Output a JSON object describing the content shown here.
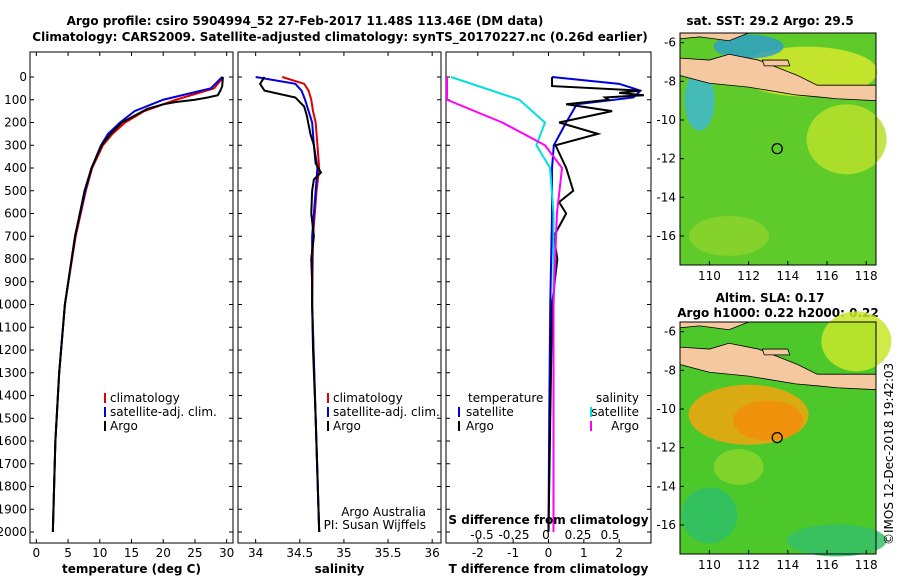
{
  "header": {
    "line1": "Argo profile: csiro 5904994_52 27-Feb-2017 11.48S 113.46E (DM data)",
    "line2": "Climatology: CARS2009. Satellite-adjusted climatology: synTS_20170227.nc (0.26d earlier)"
  },
  "colors": {
    "climatology": "#e00000",
    "satellite": "#0000e0",
    "argo": "#000000",
    "s_diff": "#ff00ff",
    "s_sat": "#00e0e0"
  },
  "chart_data": [
    {
      "type": "line",
      "panel": "temperature",
      "xlabel": "temperature (deg C)",
      "xticks": [
        0,
        5,
        10,
        15,
        20,
        25,
        30
      ],
      "xlim": [
        -1,
        31
      ],
      "ylim": [
        0,
        2050
      ],
      "yticks": [
        0,
        100,
        200,
        300,
        400,
        500,
        600,
        700,
        800,
        900,
        1000,
        1100,
        1200,
        1300,
        1400,
        1500,
        1600,
        1700,
        1800,
        1900,
        2000
      ],
      "legend": [
        "climatology",
        "satellite-adj. clim.",
        "Argo"
      ],
      "series": [
        {
          "name": "climatology",
          "depth": [
            0,
            50,
            100,
            150,
            200,
            250,
            300,
            400,
            500,
            700,
            1000,
            1300,
            1600,
            2000
          ],
          "values": [
            29.5,
            28,
            22,
            17,
            14,
            12,
            10.5,
            8.8,
            7.8,
            6.2,
            4.5,
            3.6,
            3.0,
            2.6
          ]
        },
        {
          "name": "satellite-adj. clim.",
          "depth": [
            0,
            50,
            100,
            150,
            200,
            250,
            300,
            400,
            500,
            700,
            1000,
            1300,
            1600,
            2000
          ],
          "values": [
            29.3,
            27.5,
            20,
            15.5,
            13.2,
            11.3,
            10.2,
            8.7,
            7.7,
            6.1,
            4.5,
            3.6,
            3.0,
            2.6
          ]
        },
        {
          "name": "Argo",
          "depth": [
            0,
            40,
            60,
            80,
            90,
            100,
            110,
            120,
            140,
            170,
            200,
            250,
            300,
            400,
            500,
            700,
            1000,
            1300,
            1600,
            2000
          ],
          "values": [
            29.4,
            29.3,
            29.0,
            28.6,
            27,
            25,
            22,
            20,
            17.5,
            15.5,
            13.5,
            11.7,
            10.3,
            8.7,
            7.6,
            6.1,
            4.5,
            3.6,
            3.0,
            2.6
          ]
        }
      ]
    },
    {
      "type": "line",
      "panel": "salinity",
      "xlabel": "salinity",
      "xticks": [
        34,
        34.5,
        35,
        35.5,
        36
      ],
      "xlim": [
        33.8,
        36.1
      ],
      "ylim": [
        0,
        2050
      ],
      "legend": [
        "climatology",
        "satellite-adj. clim.",
        "Argo"
      ],
      "series": [
        {
          "name": "climatology",
          "depth": [
            0,
            30,
            60,
            100,
            150,
            200,
            300,
            400,
            500,
            700,
            1000,
            1500,
            2000
          ],
          "values": [
            34.3,
            34.55,
            34.6,
            34.63,
            34.65,
            34.68,
            34.7,
            34.72,
            34.69,
            34.65,
            34.64,
            34.68,
            34.72
          ]
        },
        {
          "name": "satellite-adj. clim.",
          "depth": [
            0,
            30,
            60,
            100,
            150,
            200,
            300,
            400,
            500,
            700,
            1000,
            1500,
            2000
          ],
          "values": [
            34.0,
            34.45,
            34.52,
            34.56,
            34.6,
            34.64,
            34.66,
            34.7,
            34.68,
            34.64,
            34.64,
            34.68,
            34.72
          ]
        },
        {
          "name": "Argo",
          "depth": [
            0,
            30,
            60,
            90,
            110,
            130,
            170,
            250,
            300,
            380,
            420,
            450,
            500,
            600,
            700,
            800,
            900,
            1000,
            1200,
            1500,
            2000
          ],
          "values": [
            34.1,
            34.05,
            34.1,
            34.45,
            34.5,
            34.55,
            34.58,
            34.62,
            34.66,
            34.68,
            34.74,
            34.66,
            34.64,
            34.63,
            34.66,
            34.63,
            34.64,
            34.64,
            34.65,
            34.68,
            34.72
          ]
        }
      ],
      "annotation": [
        "Argo Australia",
        "PI: Susan Wijffels"
      ]
    },
    {
      "type": "line",
      "panel": "difference",
      "xlabel": "T difference from climatology",
      "xticks": [
        -2,
        -1,
        0,
        1,
        2
      ],
      "xlim": [
        -2.9,
        2.9
      ],
      "s_xlabel": "S difference from climatology",
      "s_xticks": [
        "-0.5",
        "-0.25",
        "0",
        "0.25",
        "0.5"
      ],
      "ylim": [
        0,
        2050
      ],
      "legend_temperature": [
        "temperature",
        "satellite",
        "Argo"
      ],
      "legend_salinity": [
        "salinity",
        "satellite",
        "Argo"
      ],
      "series": [
        {
          "name": "T satellite",
          "depth": [
            0,
            30,
            60,
            90,
            120,
            200,
            300,
            400,
            600,
            1000,
            1500,
            2000
          ],
          "values": [
            0.1,
            2.0,
            2.6,
            2.4,
            0.8,
            0.5,
            0.15,
            0.1,
            0.1,
            0.05,
            0.02,
            0.0
          ]
        },
        {
          "name": "T Argo",
          "depth": [
            0,
            40,
            60,
            70,
            80,
            90,
            100,
            120,
            150,
            200,
            250,
            300,
            400,
            500,
            550,
            600,
            700,
            800,
            1000,
            1500,
            2000
          ],
          "values": [
            0.1,
            0.1,
            2.6,
            2.0,
            2.7,
            1.6,
            1.7,
            0.5,
            1.8,
            0.3,
            1.4,
            0.2,
            0.5,
            0.7,
            0.3,
            0.5,
            0.15,
            0.25,
            0.1,
            0.05,
            0.0
          ]
        },
        {
          "name": "S satellite",
          "depth": [
            0,
            50,
            100,
            200,
            300,
            400,
            600,
            800,
            1000,
            1500,
            2000
          ],
          "values": [
            -0.6,
            -0.4,
            -0.2,
            -0.05,
            -0.1,
            -0.02,
            0.0,
            0.0,
            0.0,
            0.0,
            0.0
          ]
        },
        {
          "name": "S Argo",
          "depth": [
            0,
            30,
            60,
            80,
            100,
            200,
            260,
            300,
            400,
            600,
            1000,
            1500,
            2000
          ],
          "values": [
            -1.5,
            -1.8,
            -1.6,
            -1.2,
            -1.0,
            -0.3,
            -0.15,
            -0.05,
            0.05,
            0.02,
            0.0,
            0.0,
            0.0
          ]
        }
      ]
    }
  ],
  "maps": [
    {
      "title": "sat. SST: 29.2 Argo: 29.5",
      "xticks": [
        "110",
        "112",
        "114",
        "116",
        "118"
      ],
      "yticks": [
        "-6",
        "-8",
        "-10",
        "-12",
        "-14",
        "-16"
      ],
      "xlim": [
        108.5,
        118.5
      ],
      "ylim": [
        -17.5,
        -5.5
      ],
      "marker": {
        "lon": 113.46,
        "lat": -11.48
      }
    },
    {
      "title": "Altim. SLA: 0.17",
      "subtitle": "Argo h1000: 0.22 h2000: 0.22",
      "xticks": [
        "110",
        "112",
        "114",
        "116",
        "118"
      ],
      "yticks": [
        "-6",
        "-8",
        "-10",
        "-12",
        "-14",
        "-16"
      ],
      "xlim": [
        108.5,
        118.5
      ],
      "ylim": [
        -17.5,
        -5.5
      ],
      "marker": {
        "lon": 113.46,
        "lat": -11.48
      }
    }
  ],
  "side_note": "©IMOS 12-Dec-2018 19:42:03"
}
